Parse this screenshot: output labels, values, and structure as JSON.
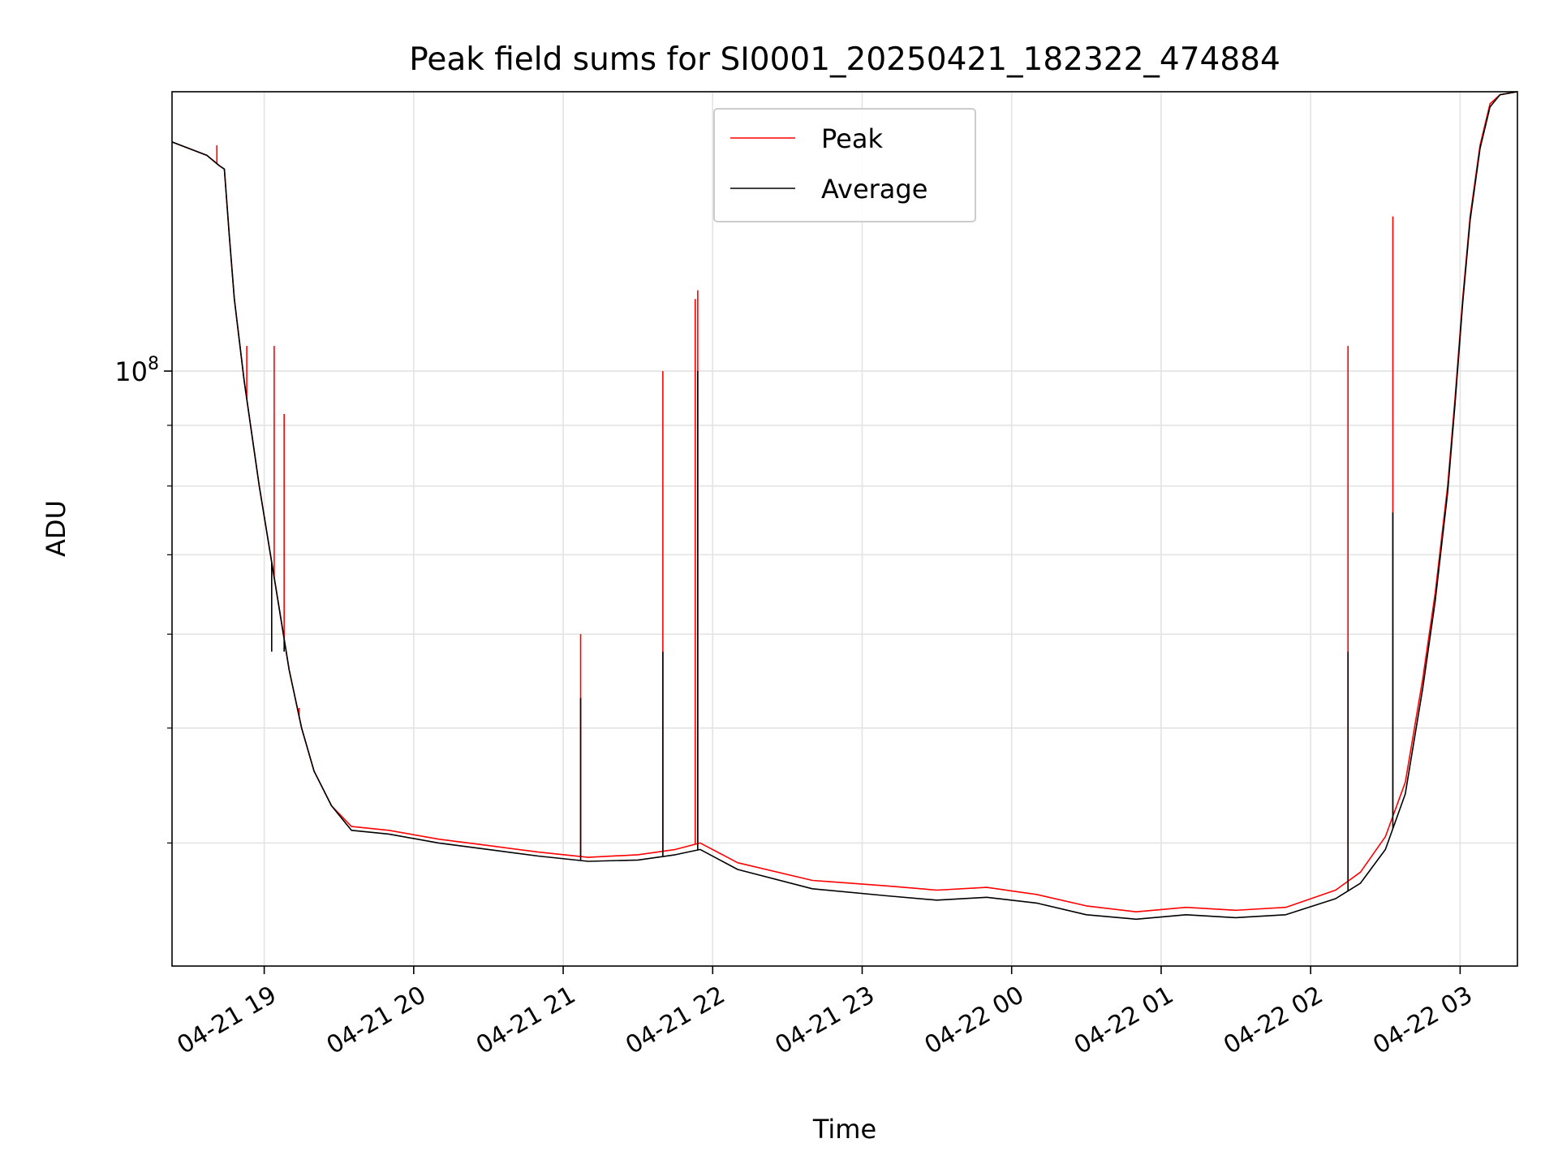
{
  "chart_data": {
    "type": "line",
    "title": "Peak field sums for SI0001_20250421_182322_474884",
    "xlabel": "Time",
    "ylabel": "ADU",
    "y_scale": "log",
    "xlim": [
      "2025-04-21 18:23",
      "2025-04-22 03:23"
    ],
    "ylim": [
      31500000,
      172000000
    ],
    "x_tick_labels": [
      "04-21 19",
      "04-21 20",
      "04-21 21",
      "04-21 22",
      "04-21 23",
      "04-22 00",
      "04-22 01",
      "04-22 02",
      "04-22 03"
    ],
    "x_ticks": [
      "2025-04-21 19:00",
      "2025-04-21 20:00",
      "2025-04-21 21:00",
      "2025-04-21 22:00",
      "2025-04-21 23:00",
      "2025-04-22 00:00",
      "2025-04-22 01:00",
      "2025-04-22 02:00",
      "2025-04-22 03:00"
    ],
    "y_major_ticks": [
      {
        "value": 100000000,
        "label_base": "10",
        "label_exp": "8"
      }
    ],
    "y_minor_ticks": [
      40000000,
      50000000,
      60000000,
      70000000,
      80000000,
      90000000
    ],
    "grid": true,
    "legend_position": "top-center",
    "series": [
      {
        "name": "Peak",
        "color": "#ff0000",
        "points": [
          [
            "2025-04-21 18:23",
            156000000
          ],
          [
            "2025-04-21 18:37",
            152000000
          ],
          [
            "2025-04-21 18:42",
            149000000
          ],
          [
            "2025-04-21 18:44",
            148000000
          ],
          [
            "2025-04-21 18:46",
            130000000
          ],
          [
            "2025-04-21 18:48",
            115000000
          ],
          [
            "2025-04-21 18:52",
            98000000
          ],
          [
            "2025-04-21 18:58",
            80000000
          ],
          [
            "2025-04-21 19:05",
            65000000
          ],
          [
            "2025-04-21 19:10",
            56000000
          ],
          [
            "2025-04-21 19:15",
            50000000
          ],
          [
            "2025-04-21 19:20",
            46000000
          ],
          [
            "2025-04-21 19:27",
            43000000
          ],
          [
            "2025-04-21 19:35",
            41300000
          ],
          [
            "2025-04-21 19:50",
            41000000
          ],
          [
            "2025-04-21 20:10",
            40300000
          ],
          [
            "2025-04-21 20:30",
            39800000
          ],
          [
            "2025-04-21 20:50",
            39300000
          ],
          [
            "2025-04-21 21:10",
            38900000
          ],
          [
            "2025-04-21 21:30",
            39100000
          ],
          [
            "2025-04-21 21:45",
            39500000
          ],
          [
            "2025-04-21 21:55",
            40000000
          ],
          [
            "2025-04-21 22:10",
            38500000
          ],
          [
            "2025-04-21 22:40",
            37200000
          ],
          [
            "2025-04-21 23:10",
            36800000
          ],
          [
            "2025-04-21 23:30",
            36500000
          ],
          [
            "2025-04-21 23:50",
            36700000
          ],
          [
            "2025-04-22 00:10",
            36200000
          ],
          [
            "2025-04-22 00:30",
            35400000
          ],
          [
            "2025-04-22 00:50",
            35000000
          ],
          [
            "2025-04-22 01:10",
            35300000
          ],
          [
            "2025-04-22 01:30",
            35100000
          ],
          [
            "2025-04-22 01:50",
            35300000
          ],
          [
            "2025-04-22 02:10",
            36500000
          ],
          [
            "2025-04-22 02:20",
            37800000
          ],
          [
            "2025-04-22 02:30",
            40500000
          ],
          [
            "2025-04-22 02:38",
            45000000
          ],
          [
            "2025-04-22 02:45",
            55000000
          ],
          [
            "2025-04-22 02:50",
            65000000
          ],
          [
            "2025-04-22 02:55",
            80000000
          ],
          [
            "2025-04-22 02:58",
            95000000
          ],
          [
            "2025-04-22 03:01",
            115000000
          ],
          [
            "2025-04-22 03:04",
            135000000
          ],
          [
            "2025-04-22 03:08",
            155000000
          ],
          [
            "2025-04-22 03:12",
            168000000
          ],
          [
            "2025-04-22 03:16",
            171000000
          ],
          [
            "2025-04-22 03:23",
            172000000
          ]
        ],
        "spikes": [
          [
            "2025-04-21 18:41",
            155000000
          ],
          [
            "2025-04-21 18:53",
            105000000
          ],
          [
            "2025-04-21 19:04",
            105000000
          ],
          [
            "2025-04-21 19:08",
            92000000
          ],
          [
            "2025-04-21 19:14",
            52000000
          ],
          [
            "2025-04-21 21:07",
            60000000
          ],
          [
            "2025-04-21 21:40",
            100000000
          ],
          [
            "2025-04-21 21:53",
            115000000
          ],
          [
            "2025-04-21 21:54",
            117000000
          ],
          [
            "2025-04-22 02:15",
            105000000
          ],
          [
            "2025-04-22 02:33",
            135000000
          ]
        ]
      },
      {
        "name": "Average",
        "color": "#000000",
        "points": [
          [
            "2025-04-21 18:23",
            156000000
          ],
          [
            "2025-04-21 18:37",
            152000000
          ],
          [
            "2025-04-21 18:42",
            149000000
          ],
          [
            "2025-04-21 18:44",
            148000000
          ],
          [
            "2025-04-21 18:46",
            130000000
          ],
          [
            "2025-04-21 18:48",
            115000000
          ],
          [
            "2025-04-21 18:52",
            98000000
          ],
          [
            "2025-04-21 18:58",
            80000000
          ],
          [
            "2025-04-21 19:05",
            65000000
          ],
          [
            "2025-04-21 19:10",
            56000000
          ],
          [
            "2025-04-21 19:15",
            50000000
          ],
          [
            "2025-04-21 19:20",
            46000000
          ],
          [
            "2025-04-21 19:27",
            43000000
          ],
          [
            "2025-04-21 19:35",
            41000000
          ],
          [
            "2025-04-21 19:50",
            40700000
          ],
          [
            "2025-04-21 20:10",
            40000000
          ],
          [
            "2025-04-21 20:30",
            39500000
          ],
          [
            "2025-04-21 20:50",
            39000000
          ],
          [
            "2025-04-21 21:10",
            38600000
          ],
          [
            "2025-04-21 21:30",
            38700000
          ],
          [
            "2025-04-21 21:45",
            39100000
          ],
          [
            "2025-04-21 21:55",
            39500000
          ],
          [
            "2025-04-21 22:10",
            38000000
          ],
          [
            "2025-04-21 22:40",
            36600000
          ],
          [
            "2025-04-21 23:10",
            36100000
          ],
          [
            "2025-04-21 23:30",
            35800000
          ],
          [
            "2025-04-21 23:50",
            36000000
          ],
          [
            "2025-04-22 00:10",
            35600000
          ],
          [
            "2025-04-22 00:30",
            34800000
          ],
          [
            "2025-04-22 00:50",
            34500000
          ],
          [
            "2025-04-22 01:10",
            34800000
          ],
          [
            "2025-04-22 01:30",
            34600000
          ],
          [
            "2025-04-22 01:50",
            34800000
          ],
          [
            "2025-04-22 02:10",
            35900000
          ],
          [
            "2025-04-22 02:20",
            37000000
          ],
          [
            "2025-04-22 02:30",
            39500000
          ],
          [
            "2025-04-22 02:38",
            44000000
          ],
          [
            "2025-04-22 02:45",
            54000000
          ],
          [
            "2025-04-22 02:50",
            64000000
          ],
          [
            "2025-04-22 02:55",
            79000000
          ],
          [
            "2025-04-22 02:58",
            94000000
          ],
          [
            "2025-04-22 03:01",
            114000000
          ],
          [
            "2025-04-22 03:04",
            134000000
          ],
          [
            "2025-04-22 03:08",
            154000000
          ],
          [
            "2025-04-22 03:12",
            167000000
          ],
          [
            "2025-04-22 03:16",
            171000000
          ],
          [
            "2025-04-22 03:23",
            172000000
          ]
        ],
        "spikes": [
          [
            "2025-04-21 19:03",
            58000000
          ],
          [
            "2025-04-21 19:08",
            58000000
          ],
          [
            "2025-04-21 21:07",
            53000000
          ],
          [
            "2025-04-21 21:40",
            58000000
          ],
          [
            "2025-04-21 21:54",
            100000000
          ],
          [
            "2025-04-22 02:15",
            58000000
          ],
          [
            "2025-04-22 02:33",
            76000000
          ]
        ]
      }
    ]
  }
}
